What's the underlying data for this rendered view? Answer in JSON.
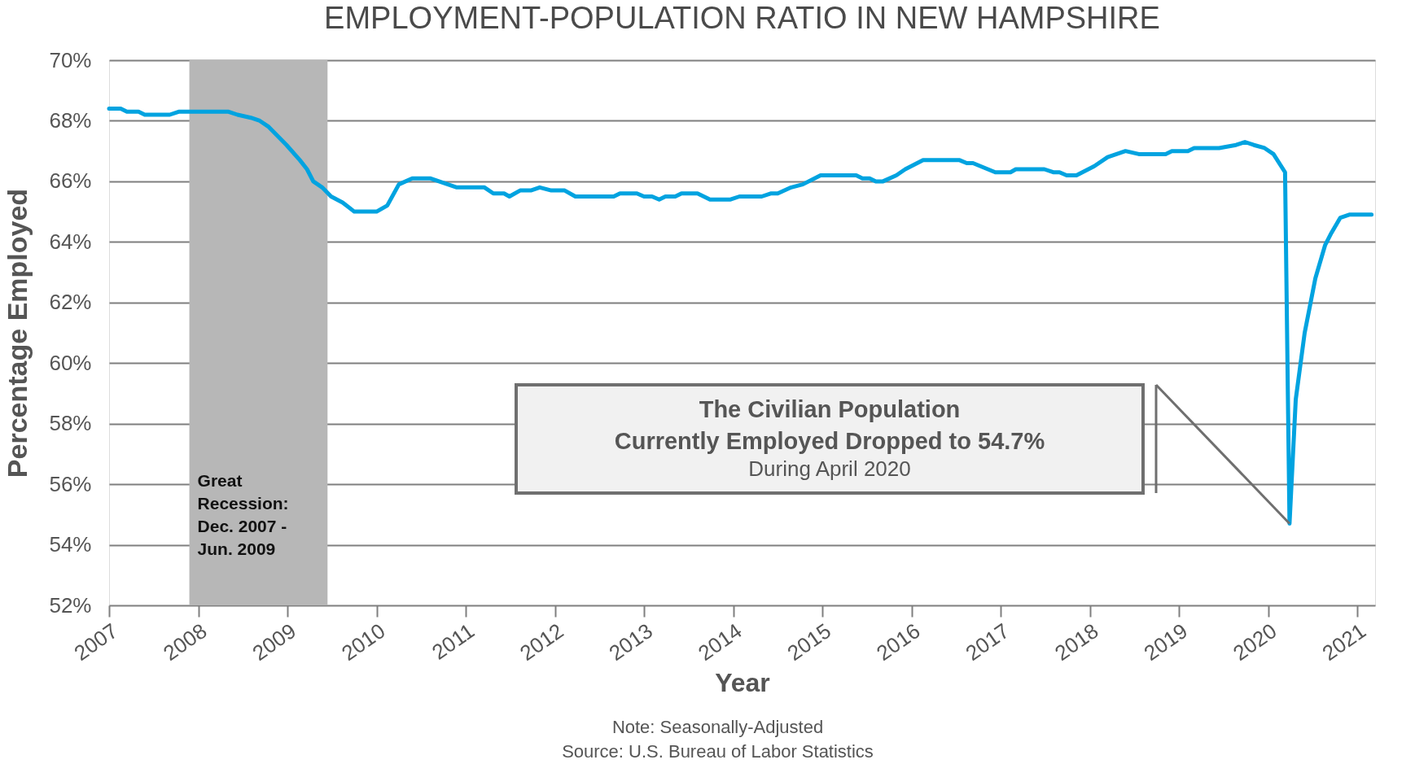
{
  "chart_data": {
    "type": "line",
    "title": "EMPLOYMENT-POPULATION RATIO IN NEW HAMPSHIRE",
    "xlabel": "Year",
    "ylabel": "Percentage Employed",
    "series": [
      {
        "color": "#00a3e0",
        "x": [
          2007.0,
          2007.13,
          2007.2,
          2007.33,
          2007.4,
          2007.68,
          2007.78,
          2008.34,
          2008.44,
          2008.59,
          2008.69,
          2008.79,
          2008.99,
          2009.14,
          2009.22,
          2009.29,
          2009.39,
          2009.49,
          2009.62,
          2009.75,
          2010.0,
          2010.12,
          2010.25,
          2010.4,
          2010.6,
          2010.8,
          2010.9,
          2011.21,
          2011.31,
          2011.43,
          2011.49,
          2011.61,
          2011.73,
          2011.83,
          2011.96,
          2012.11,
          2012.23,
          2012.66,
          2012.73,
          2012.92,
          2013.0,
          2013.09,
          2013.17,
          2013.24,
          2013.35,
          2013.42,
          2013.6,
          2013.74,
          2013.97,
          2014.07,
          2014.32,
          2014.42,
          2014.5,
          2014.65,
          2014.78,
          2014.98,
          2015.38,
          2015.45,
          2015.53,
          2015.6,
          2015.68,
          2015.83,
          2015.93,
          2016.13,
          2016.54,
          2016.62,
          2016.69,
          2016.94,
          2017.11,
          2017.17,
          2017.49,
          2017.59,
          2017.66,
          2017.74,
          2017.85,
          2018.05,
          2018.2,
          2018.4,
          2018.55,
          2018.85,
          2018.92,
          2019.1,
          2019.17,
          2019.45,
          2019.64,
          2019.74,
          2019.84,
          2019.96,
          2020.06,
          2020.19,
          2020.24,
          2020.31,
          2020.41,
          2020.53,
          2020.64,
          2020.71,
          2020.81,
          2020.91,
          2021.16
        ],
        "values": [
          68.4,
          68.4,
          68.3,
          68.3,
          68.2,
          68.2,
          68.3,
          68.3,
          68.2,
          68.1,
          68.0,
          67.8,
          67.2,
          66.7,
          66.4,
          66.0,
          65.8,
          65.5,
          65.3,
          65.0,
          65.0,
          65.2,
          65.9,
          66.1,
          66.1,
          65.9,
          65.8,
          65.8,
          65.6,
          65.6,
          65.5,
          65.7,
          65.7,
          65.8,
          65.7,
          65.7,
          65.5,
          65.5,
          65.6,
          65.6,
          65.5,
          65.5,
          65.4,
          65.5,
          65.5,
          65.6,
          65.6,
          65.4,
          65.4,
          65.5,
          65.5,
          65.6,
          65.6,
          65.8,
          65.9,
          66.2,
          66.2,
          66.1,
          66.1,
          66.0,
          66.0,
          66.2,
          66.4,
          66.7,
          66.7,
          66.6,
          66.6,
          66.3,
          66.3,
          66.4,
          66.4,
          66.3,
          66.3,
          66.2,
          66.2,
          66.5,
          66.8,
          67.0,
          66.9,
          66.9,
          67.0,
          67.0,
          67.1,
          67.1,
          67.2,
          67.3,
          67.2,
          67.1,
          66.9,
          66.3,
          54.7,
          58.8,
          61.0,
          62.8,
          63.9,
          64.3,
          64.8,
          64.9,
          64.9
        ]
      }
    ],
    "xlim": [
      2007,
      2021.2
    ],
    "xticks": [
      2007,
      2008,
      2009,
      2010,
      2011,
      2012,
      2013,
      2014,
      2015,
      2016,
      2017,
      2018,
      2019,
      2020,
      2021
    ],
    "ylim": [
      52,
      70
    ],
    "yticks": [
      {
        "value": 52,
        "label": "52%"
      },
      {
        "value": 54,
        "label": "54%"
      },
      {
        "value": 56,
        "label": "56%"
      },
      {
        "value": 58,
        "label": "58%"
      },
      {
        "value": 60,
        "label": "60%"
      },
      {
        "value": 62,
        "label": "62%"
      },
      {
        "value": 64,
        "label": "64%"
      },
      {
        "value": 66,
        "label": "66%"
      },
      {
        "value": 68,
        "label": "68%"
      },
      {
        "value": 70,
        "label": "70%"
      }
    ],
    "grid": "y",
    "line_style": "solid",
    "marker": "none",
    "bands": [
      {
        "axis": "x",
        "from": 2007.9,
        "to": 2009.45,
        "label": "Great Recession: Dec. 2007 - Jun. 2009",
        "color": "#b7b7b7"
      }
    ],
    "annotations": [
      "The Civilian Population",
      "Currently Employed Dropped to 54.7%",
      "During April 2020",
      "Note: Seasonally-Adjusted",
      "Source: U.S. Bureau of Labor Statistics"
    ]
  }
}
